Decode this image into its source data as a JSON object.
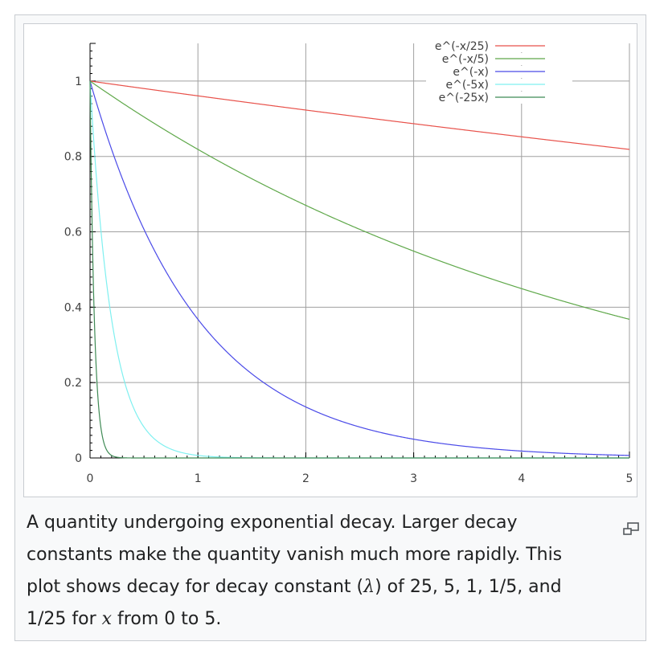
{
  "chart_data": {
    "type": "line",
    "title": "",
    "xlabel": "",
    "ylabel": "",
    "xlim": [
      0,
      5
    ],
    "ylim": [
      0,
      1.1
    ],
    "x_ticks": [
      "0",
      "1",
      "2",
      "3",
      "4",
      "5"
    ],
    "y_ticks": [
      "0",
      "0.2",
      "0.4",
      "0.6",
      "0.8",
      "1"
    ],
    "grid": true,
    "legend_position": "top-right",
    "series": [
      {
        "name": "e^(-x/25)",
        "rate": 0.04,
        "color": "#e8514a",
        "x": [
          0,
          1,
          2,
          3,
          4,
          5
        ],
        "values": [
          1,
          0.961,
          0.923,
          0.887,
          0.852,
          0.819
        ]
      },
      {
        "name": "e^(-x/5)",
        "rate": 0.2,
        "color": "#5fa84a",
        "x": [
          0,
          1,
          2,
          3,
          4,
          5
        ],
        "values": [
          1,
          0.819,
          0.67,
          0.549,
          0.449,
          0.368
        ]
      },
      {
        "name": "e^(-x)",
        "rate": 1,
        "color": "#4a4ae8",
        "x": [
          0,
          1,
          2,
          3,
          4,
          5
        ],
        "values": [
          1,
          0.368,
          0.135,
          0.05,
          0.018,
          0.007
        ]
      },
      {
        "name": "e^(-5x)",
        "rate": 5,
        "color": "#7ff0f0",
        "x": [
          0,
          0.2,
          0.4,
          0.6,
          0.8,
          1,
          1.5
        ],
        "values": [
          1,
          0.368,
          0.135,
          0.05,
          0.018,
          0.007,
          0.001
        ]
      },
      {
        "name": "e^(-25x)",
        "rate": 25,
        "color": "#3f8a55",
        "x": [
          0,
          0.04,
          0.08,
          0.12,
          0.16,
          0.2,
          0.3
        ],
        "values": [
          1,
          0.368,
          0.135,
          0.05,
          0.018,
          0.007,
          0.001
        ]
      }
    ]
  },
  "caption": {
    "line1": "A quantity undergoing exponential decay. Larger decay",
    "line2": "constants make the quantity vanish much more rapidly. This",
    "line3_a": "plot shows decay for decay constant (",
    "lambda": "λ",
    "line3_b": ") of 25, 5, 1, 1/5, and",
    "line4_a": "1/25 for ",
    "x_var": "x",
    "line4_b": " from 0 to 5."
  },
  "icons": {
    "enlarge": "enlarge-icon"
  }
}
